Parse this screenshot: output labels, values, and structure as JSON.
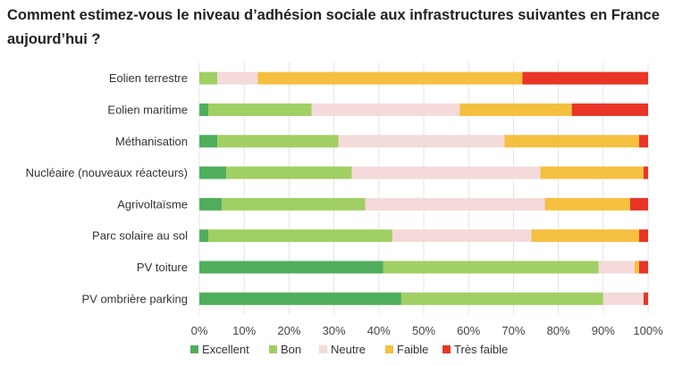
{
  "title": "Comment estimez-vous le niveau d’adhésion sociale aux infrastructures suivantes en France aujourd’hui ?",
  "chart_data": {
    "type": "bar",
    "orientation": "horizontal",
    "stacked": "percent",
    "categories": [
      "Eolien terrestre",
      "Eolien maritime",
      "Méthanisation",
      "Nucléaire (nouveaux réacteurs)",
      "Agrivoltaïsme",
      "Parc solaire au sol",
      "PV toiture",
      "PV ombrière parking"
    ],
    "series": [
      {
        "name": "Excellent",
        "color": "#4fae5c",
        "values": [
          0,
          2,
          4,
          6,
          5,
          2,
          41,
          45
        ]
      },
      {
        "name": "Bon",
        "color": "#a0cf63",
        "values": [
          4,
          23,
          27,
          28,
          32,
          41,
          48,
          45
        ]
      },
      {
        "name": "Neutre",
        "color": "#f4dada",
        "values": [
          9,
          33,
          37,
          42,
          40,
          31,
          8,
          9
        ]
      },
      {
        "name": "Faible",
        "color": "#f5c040",
        "values": [
          59,
          25,
          30,
          23,
          19,
          24,
          1,
          0
        ]
      },
      {
        "name": "Très faible",
        "color": "#e93426",
        "values": [
          28,
          17,
          2,
          1,
          4,
          2,
          2,
          1
        ]
      }
    ],
    "xlim": [
      0,
      100
    ],
    "xticks": [
      "0%",
      "10%",
      "20%",
      "30%",
      "40%",
      "50%",
      "60%",
      "70%",
      "80%",
      "90%",
      "100%"
    ],
    "grid": true,
    "legend": "bottom"
  }
}
